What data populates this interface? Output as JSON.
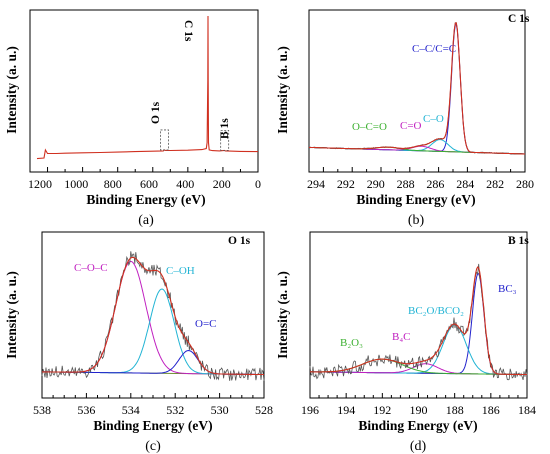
{
  "chart_data": [
    {
      "panel": "(a)",
      "type": "line",
      "title": "",
      "xlabel": "Binding Energy (eV)",
      "ylabel": "Intensity (a. u.)",
      "xlim": [
        1300,
        0
      ],
      "xticks": [
        "1200",
        "1000",
        "800",
        "600",
        "400",
        "200",
        "0"
      ],
      "annotations": [
        {
          "text": "C 1s",
          "x": 285,
          "y": 0.92
        },
        {
          "text": "O 1s",
          "x": 532,
          "y": 0.09
        },
        {
          "text": "B 1s",
          "x": 190,
          "y": 0.06
        }
      ],
      "series": [
        {
          "color": "#d03020",
          "x": [
            1260,
            1220,
            1212,
            1200,
            1150,
            1100,
            1000,
            900,
            800,
            700,
            600,
            540,
            533,
            528,
            500,
            400,
            320,
            295,
            290,
            286,
            285,
            284,
            282,
            278,
            260,
            220,
            192,
            186,
            160,
            100,
            0
          ],
          "y": [
            0.01,
            0.014,
            0.07,
            0.045,
            0.045,
            0.047,
            0.05,
            0.052,
            0.055,
            0.058,
            0.061,
            0.063,
            0.07,
            0.066,
            0.066,
            0.068,
            0.072,
            0.08,
            0.12,
            0.55,
            1.0,
            0.55,
            0.12,
            0.07,
            0.065,
            0.063,
            0.067,
            0.063,
            0.062,
            0.06,
            0.058
          ]
        }
      ]
    },
    {
      "panel": "(b)",
      "type": "line",
      "title": "C 1s",
      "xlabel": "Binding Energy (eV)",
      "ylabel": "Intensity (a. u.)",
      "xlim": [
        295,
        280
      ],
      "xticks": [
        "294",
        "292",
        "290",
        "288",
        "286",
        "284",
        "282",
        "280"
      ],
      "peaks": [
        {
          "label": "C–C/C=C",
          "center": 284.8,
          "height": 0.97,
          "fwhm": 0.7,
          "color": "#2222cc"
        },
        {
          "label": "C–O",
          "center": 285.9,
          "height": 0.09,
          "fwhm": 1.3,
          "color": "#22b4d4"
        },
        {
          "label": "C=O",
          "center": 287.2,
          "height": 0.035,
          "fwhm": 1.5,
          "color": "#c020c0"
        },
        {
          "label": "O–C=O",
          "center": 289.5,
          "height": 0.02,
          "fwhm": 2.0,
          "color": "#3cb030"
        }
      ],
      "background": {
        "left": 0.05,
        "right": 0.0
      }
    },
    {
      "panel": "(c)",
      "type": "line",
      "title": "O 1s",
      "xlabel": "Binding Energy (eV)",
      "ylabel": "Intensity (a. u.)",
      "xlim": [
        538,
        528
      ],
      "xticks": [
        "538",
        "536",
        "534",
        "532",
        "530",
        "528"
      ],
      "peaks": [
        {
          "label": "C–O–C",
          "center": 534.0,
          "height": 0.82,
          "fwhm": 1.6,
          "color": "#c020c0"
        },
        {
          "label": "C–OH",
          "center": 532.6,
          "height": 0.62,
          "fwhm": 1.3,
          "color": "#22b4d4"
        },
        {
          "label": "O=C",
          "center": 531.4,
          "height": 0.17,
          "fwhm": 1.0,
          "color": "#2222cc"
        }
      ],
      "background": {
        "left": 0.06,
        "right": 0.04
      }
    },
    {
      "panel": "(d)",
      "type": "line",
      "title": "B 1s",
      "xlabel": "Binding Energy (eV)",
      "ylabel": "Intensity (a. u.)",
      "xlim": [
        196,
        184
      ],
      "xticks": [
        "196",
        "194",
        "192",
        "190",
        "188",
        "186",
        "184"
      ],
      "peaks": [
        {
          "label": "BC₃",
          "center": 186.7,
          "height": 0.74,
          "fwhm": 0.75,
          "color": "#2222cc"
        },
        {
          "label": "BC₂O/BCO₂",
          "center": 188.0,
          "height": 0.36,
          "fwhm": 1.5,
          "color": "#22b4d4"
        },
        {
          "label": "B₄C",
          "center": 189.6,
          "height": 0.07,
          "fwhm": 1.6,
          "color": "#c020c0"
        },
        {
          "label": "B₂O₃",
          "center": 192.0,
          "height": 0.1,
          "fwhm": 2.6,
          "color": "#3cb030"
        }
      ],
      "background": {
        "left": 0.06,
        "right": 0.04
      }
    }
  ]
}
